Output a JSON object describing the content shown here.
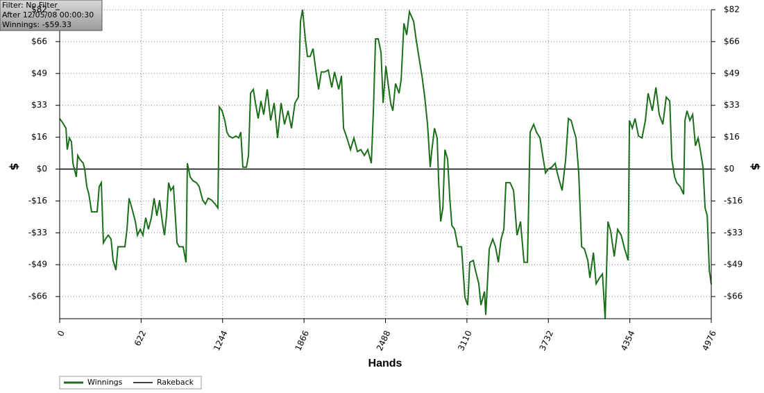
{
  "chart_data": {
    "type": "line",
    "annotations": [
      "Filter: No Filter",
      "After 12/05/08 00:00:30",
      "Winnings: -$59.33"
    ],
    "x_label": "Hands",
    "y_label": "$",
    "y2_label": "$",
    "xlim": [
      0,
      4976
    ],
    "xticks": [
      0,
      622,
      1244,
      1866,
      2488,
      3110,
      3732,
      4354,
      4976
    ],
    "ylim": [
      -77,
      82
    ],
    "yticks": [
      {
        "value": -65.6,
        "label": "-$66"
      },
      {
        "value": -49.2,
        "label": "-$49"
      },
      {
        "value": -32.8,
        "label": "-$33"
      },
      {
        "value": -16.4,
        "label": "-$16"
      },
      {
        "value": 0,
        "label": "$0"
      },
      {
        "value": 16.4,
        "label": "$16"
      },
      {
        "value": 32.8,
        "label": "$33"
      },
      {
        "value": 49.2,
        "label": "$49"
      },
      {
        "value": 65.6,
        "label": "$66"
      },
      {
        "value": 82,
        "label": "$82"
      }
    ],
    "grid": true,
    "legend": "bottom-left",
    "series": [
      {
        "name": "Winnings",
        "color": "#1a6e1a",
        "x": [
          0,
          21,
          48,
          58,
          74,
          90,
          101,
          127,
          138,
          154,
          180,
          191,
          207,
          223,
          244,
          286,
          302,
          318,
          334,
          350,
          371,
          392,
          408,
          429,
          445,
          472,
          498,
          514,
          530,
          551,
          578,
          594,
          615,
          636,
          657,
          678,
          700,
          721,
          742,
          763,
          784,
          800,
          816,
          832,
          848,
          869,
          896,
          912,
          943,
          965,
          975,
          996,
          1018,
          1044,
          1065,
          1092,
          1113,
          1134,
          1161,
          1187,
          1208,
          1219,
          1240,
          1261,
          1277,
          1293,
          1320,
          1346,
          1367,
          1383,
          1399,
          1426,
          1442,
          1458,
          1479,
          1495,
          1516,
          1537,
          1558,
          1585,
          1611,
          1638,
          1664,
          1691,
          1717,
          1744,
          1770,
          1797,
          1823,
          1839,
          1855,
          1876,
          1892,
          1913,
          1935,
          1956,
          1977,
          1998,
          2025,
          2051,
          2078,
          2099,
          2131,
          2152,
          2168,
          2194,
          2221,
          2247,
          2274,
          2300,
          2327,
          2353,
          2380,
          2396,
          2412,
          2433,
          2454,
          2470,
          2491,
          2512,
          2528,
          2544,
          2565,
          2592,
          2608,
          2629,
          2650,
          2671,
          2703,
          2724,
          2745,
          2767,
          2788,
          2809,
          2830,
          2841,
          2862,
          2883,
          2894,
          2910,
          2926,
          2942,
          2963,
          2979,
          2995,
          3016,
          3042,
          3069,
          3095,
          3116,
          3132,
          3159,
          3175,
          3201,
          3217,
          3244,
          3254,
          3281,
          3307,
          3328,
          3350,
          3371,
          3392,
          3408,
          3440,
          3466,
          3493,
          3519,
          3546,
          3572,
          3593,
          3620,
          3641,
          3668,
          3689,
          3710,
          3731,
          3758,
          3784,
          3800,
          3816,
          3837,
          3864,
          3885,
          3906,
          3922,
          3943,
          3964,
          3986,
          4007,
          4033,
          4049,
          4076,
          4097,
          4123,
          4145,
          4166,
          4187,
          4208,
          4235,
          4261,
          4288,
          4314,
          4341,
          4351,
          4373,
          4394,
          4420,
          4447,
          4473,
          4494,
          4526,
          4553,
          4579,
          4606,
          4632,
          4659,
          4675,
          4696,
          4712,
          4738,
          4765,
          4775,
          4791,
          4812,
          4834,
          4855,
          4876,
          4892,
          4913,
          4929,
          4945,
          4961,
          4976
        ],
        "values": [
          26,
          24,
          21,
          10,
          16,
          14,
          3,
          -4,
          7,
          5,
          3,
          0,
          -9,
          -13,
          -22,
          -22,
          -9,
          -7,
          -38,
          -36,
          -34,
          -36,
          -47,
          -52,
          -40,
          -40,
          -40,
          -31,
          -15,
          -20,
          -27,
          -34,
          -31,
          -34,
          -25,
          -31,
          -25,
          -15,
          -24,
          -16,
          -27,
          -34,
          -24,
          -7,
          -11,
          -9,
          -38,
          -40,
          -40,
          -48,
          3,
          -4,
          -6,
          -7,
          -9,
          -16,
          -18,
          -15,
          -16,
          -18,
          -20,
          32,
          30,
          25,
          19,
          17,
          16,
          17,
          16,
          19,
          1,
          1,
          7,
          39,
          41,
          34,
          26,
          35,
          28,
          41,
          25,
          34,
          16,
          34,
          23,
          30,
          21,
          34,
          37,
          76,
          82,
          67,
          58,
          58,
          62,
          51,
          41,
          50,
          50,
          51,
          42,
          50,
          41,
          48,
          21,
          16,
          10,
          16,
          9,
          10,
          7,
          10,
          3,
          30,
          67,
          67,
          60,
          34,
          53,
          42,
          34,
          30,
          44,
          39,
          46,
          75,
          69,
          81,
          76,
          66,
          57,
          48,
          37,
          23,
          1,
          9,
          21,
          16,
          -6,
          -27,
          -20,
          10,
          5,
          -15,
          -29,
          -31,
          -40,
          -40,
          -66,
          -70,
          -48,
          -47,
          -52,
          -59,
          -70,
          -63,
          -75,
          -41,
          -36,
          -40,
          -48,
          -36,
          -31,
          -7,
          -7,
          -11,
          -34,
          -27,
          -48,
          -48,
          19,
          23,
          19,
          16,
          7,
          -2,
          0,
          1,
          3,
          -2,
          -6,
          -11,
          5,
          26,
          25,
          21,
          16,
          -2,
          -40,
          -41,
          -47,
          -56,
          -43,
          -59,
          -56,
          -54,
          -77,
          -27,
          -32,
          -45,
          -31,
          -34,
          -41,
          -47,
          25,
          21,
          26,
          17,
          16,
          25,
          39,
          30,
          42,
          28,
          23,
          37,
          35,
          5,
          -4,
          -7,
          -9,
          -13,
          25,
          30,
          25,
          28,
          12,
          16,
          10,
          1,
          -20,
          -24,
          -52,
          -59.33
        ]
      },
      {
        "name": "Rakeback",
        "color": "#000000",
        "x": [
          0,
          4976
        ],
        "values": [
          0,
          0
        ]
      }
    ]
  }
}
